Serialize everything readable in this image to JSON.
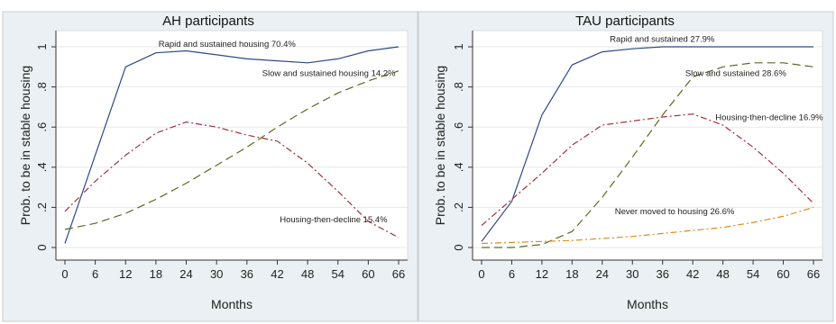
{
  "chart_data": [
    {
      "type": "line",
      "title": "AH participants",
      "xlabel": "Months",
      "ylabel": "Prob. to be in stable housing",
      "x": [
        0,
        6,
        12,
        18,
        24,
        30,
        36,
        42,
        48,
        54,
        60,
        66
      ],
      "xticks": [
        "0",
        "6",
        "12",
        "18",
        "24",
        "30",
        "36",
        "42",
        "48",
        "54",
        "60",
        "66"
      ],
      "yticks": [
        "0",
        ".2",
        ".4",
        ".6",
        ".8",
        "1"
      ],
      "ylim": [
        0,
        1
      ],
      "xlim": [
        0,
        66
      ],
      "grid": true,
      "series": [
        {
          "name": "Rapid and sustained housing",
          "pct": "70.4%",
          "color": "#2e4a85",
          "dash": "solid",
          "values": [
            0.02,
            0.46,
            0.9,
            0.97,
            0.98,
            0.96,
            0.94,
            0.93,
            0.92,
            0.94,
            0.98,
            1.0
          ]
        },
        {
          "name": "Slow and sustained housing",
          "pct": "14.2%",
          "color": "#5a6a1e",
          "dash": "long",
          "values": [
            0.09,
            0.12,
            0.17,
            0.24,
            0.32,
            0.41,
            0.5,
            0.6,
            0.69,
            0.77,
            0.83,
            0.88
          ]
        },
        {
          "name": "Housing-then-decline",
          "pct": "15.4%",
          "color": "#a03040",
          "dash": "dashdot",
          "values": [
            0.18,
            0.33,
            0.46,
            0.57,
            0.625,
            0.6,
            0.56,
            0.53,
            0.42,
            0.28,
            0.13,
            0.05
          ]
        }
      ]
    },
    {
      "type": "line",
      "title": "TAU participants",
      "xlabel": "Months",
      "ylabel": "Prob. to be in stable housing",
      "x": [
        0,
        6,
        12,
        18,
        24,
        30,
        36,
        42,
        48,
        54,
        60,
        66
      ],
      "xticks": [
        "0",
        "6",
        "12",
        "18",
        "24",
        "30",
        "36",
        "42",
        "48",
        "54",
        "60",
        "66"
      ],
      "yticks": [
        "0",
        ".2",
        ".4",
        ".6",
        ".8",
        "1"
      ],
      "ylim": [
        0,
        1
      ],
      "xlim": [
        0,
        66
      ],
      "grid": true,
      "series": [
        {
          "name": "Rapid and sustained",
          "pct": "27.9%",
          "color": "#2e4a85",
          "dash": "solid",
          "values": [
            0.03,
            0.23,
            0.66,
            0.91,
            0.975,
            0.99,
            1.0,
            1.0,
            1.0,
            1.0,
            1.0,
            1.0
          ]
        },
        {
          "name": "Slow and sustained",
          "pct": "28.6%",
          "color": "#5a6a1e",
          "dash": "long",
          "values": [
            0.0,
            0.0,
            0.015,
            0.08,
            0.25,
            0.45,
            0.66,
            0.85,
            0.9,
            0.92,
            0.92,
            0.9
          ]
        },
        {
          "name": "Housing-then-decline",
          "pct": "16.9%",
          "color": "#a03040",
          "dash": "dashdot",
          "values": [
            0.11,
            0.24,
            0.37,
            0.51,
            0.61,
            0.63,
            0.65,
            0.665,
            0.61,
            0.5,
            0.37,
            0.22
          ]
        },
        {
          "name": "Never moved to housing",
          "pct": "26.6%",
          "color": "#e08a1a",
          "dash": "dashdot",
          "values": [
            0.02,
            0.025,
            0.03,
            0.035,
            0.045,
            0.055,
            0.07,
            0.085,
            0.1,
            0.125,
            0.155,
            0.2
          ]
        }
      ]
    }
  ]
}
